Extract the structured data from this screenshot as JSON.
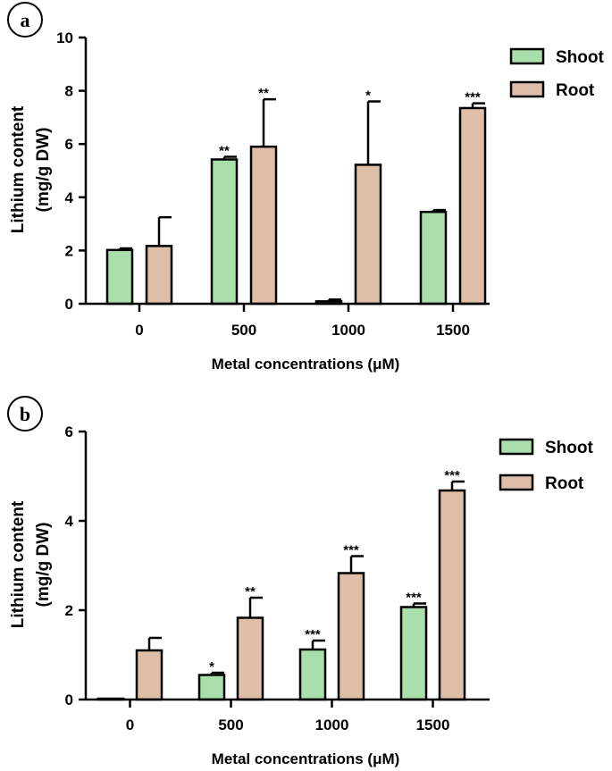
{
  "chart_data": [
    {
      "type": "bar",
      "panel_label": "a",
      "categories": [
        "0",
        "500",
        "1000",
        "1500"
      ],
      "series": [
        {
          "name": "Shoot",
          "values": [
            2.02,
            5.42,
            0.09,
            3.45
          ],
          "errors": [
            0.06,
            0.1,
            0.07,
            0.07
          ],
          "significance": [
            "",
            "**",
            "",
            ""
          ]
        },
        {
          "name": "Root",
          "values": [
            2.17,
            5.9,
            5.22,
            7.35
          ],
          "errors": [
            1.08,
            1.78,
            2.38,
            0.18
          ],
          "significance": [
            "",
            "**",
            "*",
            "***"
          ]
        }
      ],
      "xlabel": "Metal concentrations (μM)",
      "ylabel_line1": "Lithium content",
      "ylabel_line2": "(mg/g DW)",
      "ylim": [
        0,
        10
      ],
      "yticks": [
        "0",
        "2",
        "4",
        "6",
        "8",
        "10"
      ],
      "legend_position": "top-right",
      "colors": {
        "Shoot": "#a8dfaa",
        "Root": "#dfbfa8"
      },
      "grid": false
    },
    {
      "type": "bar",
      "panel_label": "b",
      "categories": [
        "0",
        "500",
        "1000",
        "1500"
      ],
      "series": [
        {
          "name": "Shoot",
          "values": [
            0.02,
            0.55,
            1.12,
            2.07
          ],
          "errors": [
            0.0,
            0.05,
            0.2,
            0.08
          ],
          "significance": [
            "",
            "*",
            "***",
            "***"
          ]
        },
        {
          "name": "Root",
          "values": [
            1.1,
            1.83,
            2.83,
            4.68
          ],
          "errors": [
            0.28,
            0.45,
            0.38,
            0.2
          ],
          "significance": [
            "",
            "**",
            "***",
            "***"
          ]
        }
      ],
      "xlabel": "Metal concentrations (μM)",
      "ylabel_line1": "Lithium content",
      "ylabel_line2": "(mg/g DW)",
      "ylim": [
        0,
        6
      ],
      "yticks": [
        "0",
        "2",
        "4",
        "6"
      ],
      "legend_position": "top-right",
      "colors": {
        "Shoot": "#a8dfaa",
        "Root": "#dfbfa8"
      },
      "grid": false
    }
  ]
}
